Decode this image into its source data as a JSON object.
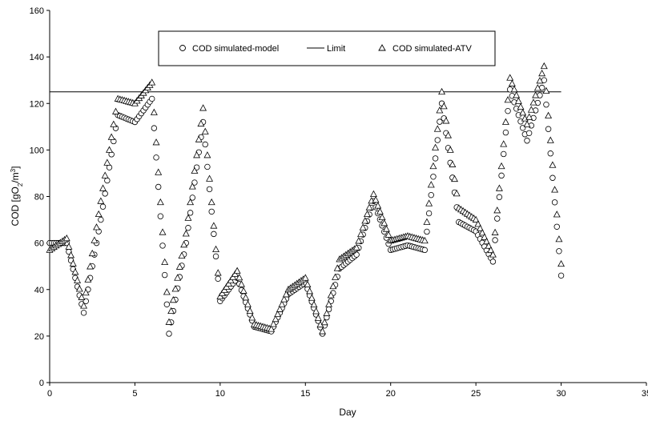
{
  "chart_data": {
    "type": "scatter",
    "xlabel": "Day",
    "ylabel": "COD [gO₂/m³]",
    "ylabel_parts": {
      "main": "COD [gO",
      "sub": "2",
      "mid": "/m",
      "sup": "3",
      "end": "]"
    },
    "xlim": [
      0,
      35
    ],
    "ylim": [
      0,
      160
    ],
    "xticks": [
      0,
      5,
      10,
      15,
      20,
      25,
      30,
      35
    ],
    "yticks": [
      0,
      20,
      40,
      60,
      80,
      100,
      120,
      140,
      160
    ],
    "grid": false,
    "legend_position": "top-center",
    "limit_value": 125,
    "series": [
      {
        "name": "COD simulated-model",
        "marker": "circle",
        "values_at_day": [
          [
            0,
            60
          ],
          [
            1,
            60
          ],
          [
            2,
            30
          ],
          [
            3,
            70
          ],
          [
            4,
            115
          ],
          [
            5,
            112
          ],
          [
            6,
            122
          ],
          [
            7,
            21
          ],
          [
            8,
            60
          ],
          [
            9,
            112
          ],
          [
            10,
            35
          ],
          [
            11,
            45
          ],
          [
            12,
            24
          ],
          [
            13,
            22
          ],
          [
            14,
            38
          ],
          [
            15,
            43
          ],
          [
            16,
            21
          ],
          [
            17,
            49
          ],
          [
            18,
            55
          ],
          [
            19,
            78
          ],
          [
            20,
            57
          ],
          [
            21,
            59
          ],
          [
            22,
            57
          ],
          [
            23,
            120
          ],
          [
            24,
            69
          ],
          [
            25,
            65
          ],
          [
            26,
            52
          ],
          [
            27,
            126
          ],
          [
            28,
            104
          ],
          [
            29,
            130
          ],
          [
            30,
            46
          ]
        ]
      },
      {
        "name": "Limit",
        "marker": "line",
        "values_at_day": [
          [
            0,
            125
          ],
          [
            30,
            125
          ]
        ]
      },
      {
        "name": "COD simulated-ATV",
        "marker": "triangle",
        "values_at_day": [
          [
            0,
            57
          ],
          [
            1,
            62
          ],
          [
            2,
            33
          ],
          [
            3,
            78
          ],
          [
            4,
            122
          ],
          [
            5,
            120
          ],
          [
            6,
            129
          ],
          [
            7,
            26
          ],
          [
            8,
            64
          ],
          [
            9,
            118
          ],
          [
            10,
            37
          ],
          [
            11,
            48
          ],
          [
            12,
            25
          ],
          [
            13,
            23
          ],
          [
            14,
            40
          ],
          [
            15,
            45
          ],
          [
            16,
            22
          ],
          [
            17,
            53
          ],
          [
            18,
            58
          ],
          [
            19,
            81
          ],
          [
            20,
            61
          ],
          [
            21,
            63
          ],
          [
            22,
            61
          ],
          [
            23,
            125
          ],
          [
            24,
            75
          ],
          [
            25,
            70
          ],
          [
            26,
            55
          ],
          [
            27,
            131
          ],
          [
            28,
            111
          ],
          [
            29,
            136
          ],
          [
            30,
            51
          ]
        ]
      }
    ]
  },
  "colors": {
    "axis": "#000000",
    "marker_stroke": "#000000",
    "marker_fill": "#ffffff",
    "limit": "#000000"
  },
  "legend": {
    "model_label": "COD simulated-model",
    "limit_label": "Limit",
    "atv_label": "COD simulated-ATV"
  }
}
